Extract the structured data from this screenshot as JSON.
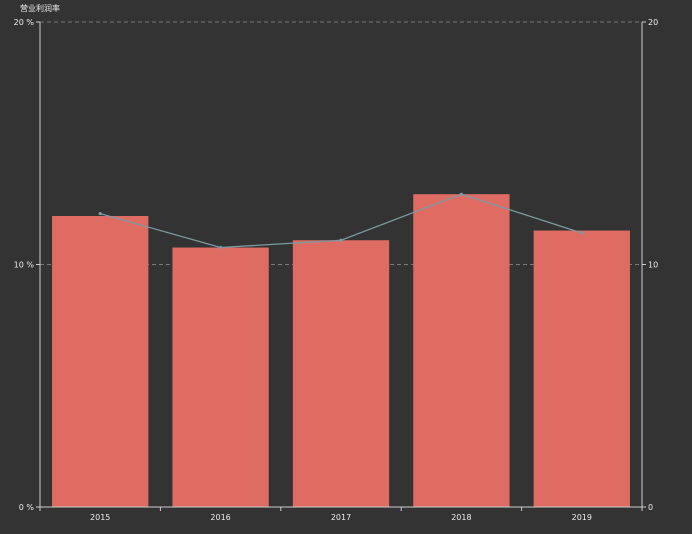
{
  "chart_data": {
    "type": "bar",
    "title": "",
    "categories": [
      "2015",
      "2016",
      "2017",
      "2018",
      "2019"
    ],
    "series": [
      {
        "type": "bar",
        "values": [
          12.0,
          10.7,
          11.0,
          12.9,
          11.4
        ],
        "color": "#df6c63"
      },
      {
        "type": "line",
        "values": [
          12.1,
          10.7,
          11.0,
          12.9,
          11.3
        ],
        "color": "#7a9aa4"
      }
    ],
    "y_left": {
      "name": "营业利润率",
      "min": 0,
      "max": 20,
      "ticks": [
        0,
        10,
        20
      ],
      "tick_labels": [
        "0 %",
        "10 %",
        "20 %"
      ]
    },
    "y_right": {
      "min": 0,
      "max": 20,
      "ticks": [
        0,
        10,
        20
      ],
      "tick_labels": [
        "0",
        "10",
        "20"
      ]
    },
    "grid": true,
    "background": "#333333"
  }
}
